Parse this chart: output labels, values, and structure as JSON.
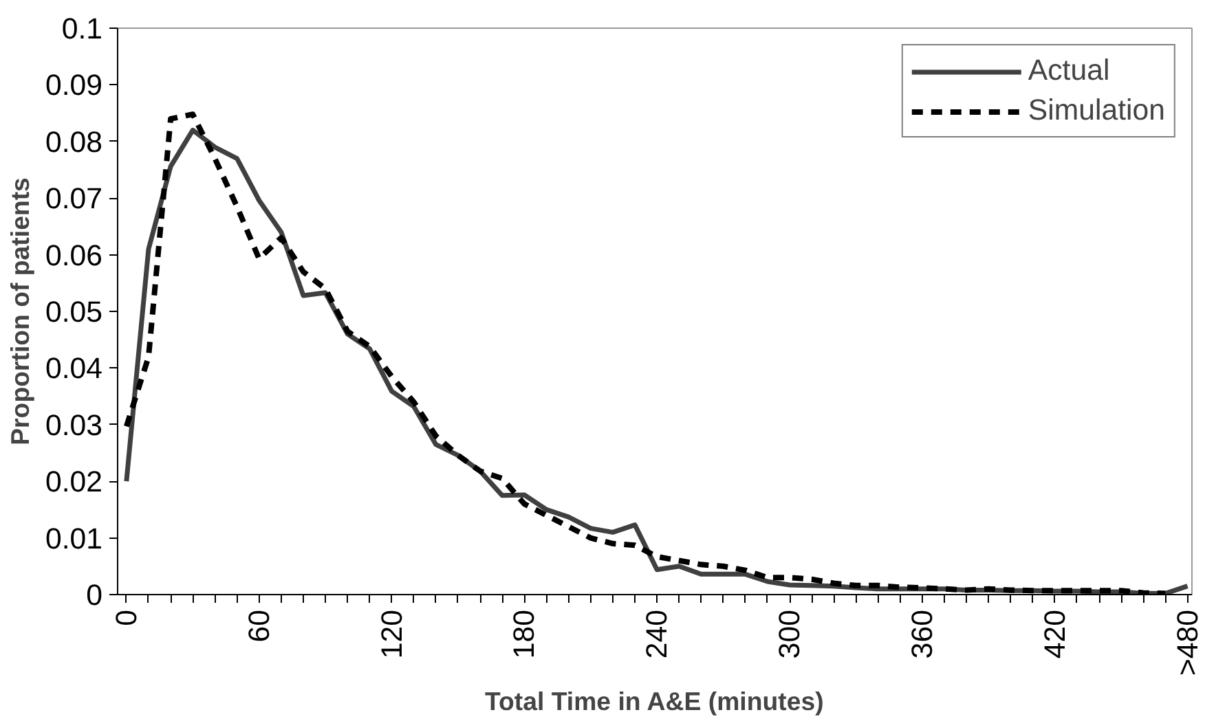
{
  "chart_data": {
    "type": "line",
    "xlabel": "Total Time in A&E (minutes)",
    "ylabel": "Proportion of patients",
    "categories": [
      "0",
      null,
      null,
      null,
      null,
      null,
      "60",
      null,
      null,
      null,
      null,
      null,
      "120",
      null,
      null,
      null,
      null,
      null,
      "180",
      null,
      null,
      null,
      null,
      null,
      "240",
      null,
      null,
      null,
      null,
      null,
      "300",
      null,
      null,
      null,
      null,
      null,
      "360",
      null,
      null,
      null,
      null,
      null,
      "420",
      null,
      null,
      null,
      null,
      null,
      ">480"
    ],
    "series": [
      {
        "name": "Actual",
        "color": "#404040",
        "line_style": "solid",
        "values": [
          0.02,
          0.061,
          0.0756,
          0.082,
          0.079,
          0.077,
          0.0696,
          0.064,
          0.0528,
          0.0533,
          0.046,
          0.0434,
          0.0359,
          0.0332,
          0.0265,
          0.0246,
          0.0218,
          0.0175,
          0.0176,
          0.015,
          0.0137,
          0.0117,
          0.011,
          0.0123,
          0.0044,
          0.005,
          0.0036,
          0.0036,
          0.0036,
          0.0023,
          0.0017,
          0.0016,
          0.0015,
          0.0012,
          0.001,
          0.001,
          0.001,
          0.001,
          0.0008,
          0.0008,
          0.0007,
          0.0007,
          0.0006,
          0.0006,
          0.0005,
          0.0005,
          0.0002,
          0.0002,
          0.0015
        ]
      },
      {
        "name": "Simulation",
        "color": "#000000",
        "line_style": "dashed",
        "values": [
          0.0297,
          0.042,
          0.084,
          0.0848,
          0.077,
          0.0685,
          0.0593,
          0.063,
          0.057,
          0.054,
          0.0465,
          0.0438,
          0.0385,
          0.034,
          0.028,
          0.0246,
          0.0218,
          0.0205,
          0.016,
          0.014,
          0.012,
          0.01,
          0.009,
          0.0087,
          0.0067,
          0.006,
          0.0053,
          0.005,
          0.0043,
          0.003,
          0.003,
          0.0027,
          0.002,
          0.0016,
          0.0016,
          0.0013,
          0.0012,
          0.001,
          0.0008,
          0.001,
          0.0008,
          0.0007,
          0.0007,
          0.0007,
          0.0007,
          0.0007,
          0.0003,
          0.0002,
          null
        ]
      }
    ],
    "ylim": [
      0,
      0.1
    ],
    "yticks": [
      0,
      0.01,
      0.02,
      0.03,
      0.04,
      0.05,
      0.06,
      0.07,
      0.08,
      0.09,
      0.1
    ],
    "grid": false,
    "legend": "top right",
    "marker": "none"
  }
}
